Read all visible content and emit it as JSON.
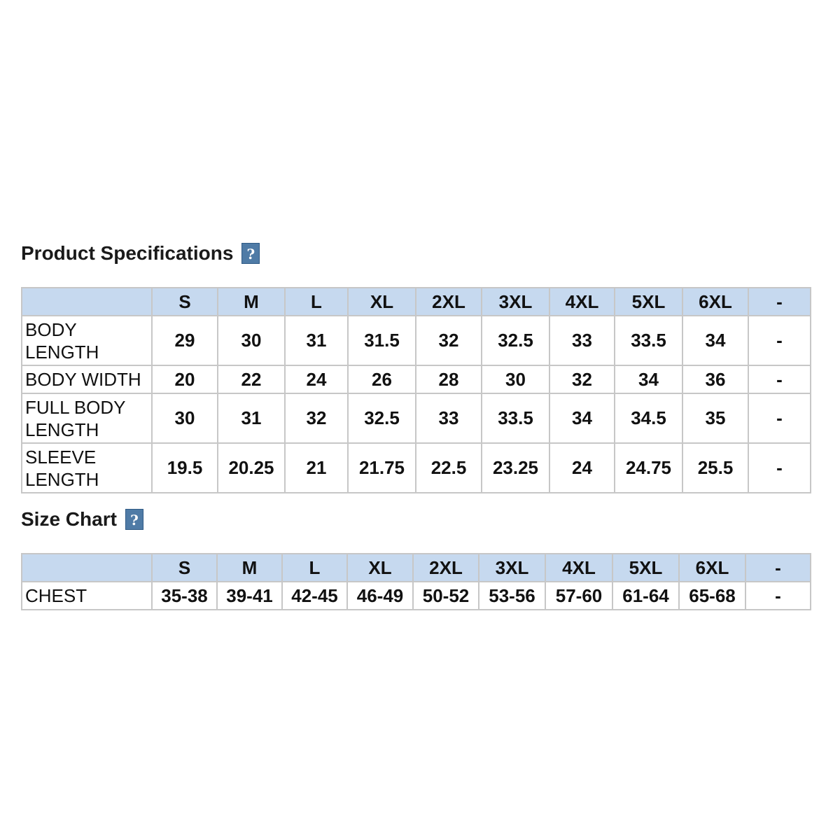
{
  "product_specifications": {
    "title": "Product Specifications",
    "help_label": "?",
    "header_corner": "",
    "columns": [
      "S",
      "M",
      "L",
      "XL",
      "2XL",
      "3XL",
      "4XL",
      "5XL",
      "6XL",
      "-"
    ],
    "rows": [
      {
        "label_line1": "BODY",
        "label_line2": "LENGTH",
        "values": [
          "29",
          "30",
          "31",
          "31.5",
          "32",
          "32.5",
          "33",
          "33.5",
          "34",
          "-"
        ]
      },
      {
        "label_line1": "BODY WIDTH",
        "label_line2": "",
        "values": [
          "20",
          "22",
          "24",
          "26",
          "28",
          "30",
          "32",
          "34",
          "36",
          "-"
        ]
      },
      {
        "label_line1": "FULL BODY",
        "label_line2": "LENGTH",
        "values": [
          "30",
          "31",
          "32",
          "32.5",
          "33",
          "33.5",
          "34",
          "34.5",
          "35",
          "-"
        ]
      },
      {
        "label_line1": "SLEEVE",
        "label_line2": "LENGTH",
        "values": [
          "19.5",
          "20.25",
          "21",
          "21.75",
          "22.5",
          "23.25",
          "24",
          "24.75",
          "25.5",
          "-"
        ]
      }
    ]
  },
  "size_chart": {
    "title": "Size Chart",
    "help_label": "?",
    "header_corner": "",
    "columns": [
      "S",
      "M",
      "L",
      "XL",
      "2XL",
      "3XL",
      "4XL",
      "5XL",
      "6XL",
      "-"
    ],
    "rows": [
      {
        "label": "CHEST",
        "values": [
          "35-38",
          "39-41",
          "42-45",
          "46-49",
          "50-52",
          "53-56",
          "57-60",
          "61-64",
          "65-68",
          "-"
        ]
      }
    ]
  },
  "colors": {
    "header_bg": "#c6d9ef",
    "help_icon_bg": "#4f7ba6",
    "grid_line": "#c7c7c7"
  },
  "icons": {
    "help": "help-icon"
  }
}
